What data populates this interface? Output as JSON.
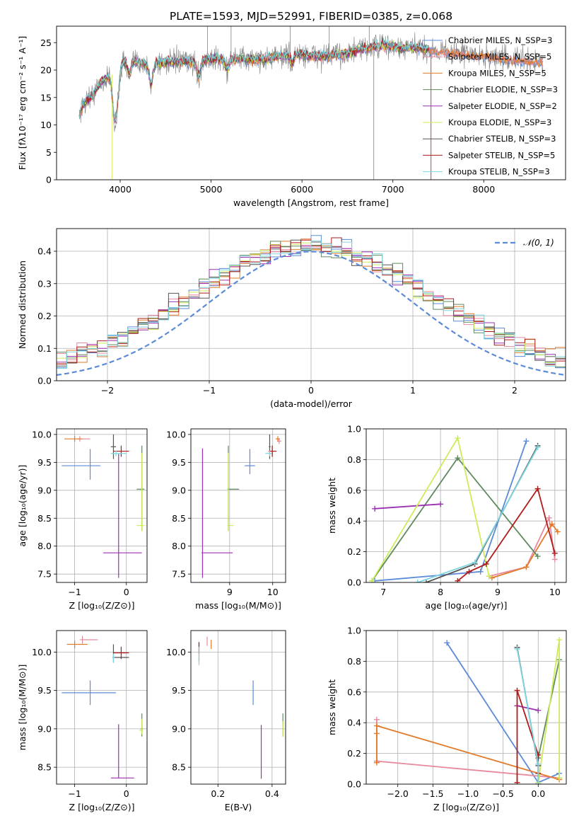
{
  "figure_title": "PLATE=1593, MJD=52991, FIBERID=0385, z=0.068",
  "colors": {
    "chab_miles": "#5b8bd8",
    "salp_miles": "#e68a9e",
    "kroupa_miles": "#e07b2a",
    "chab_elodie": "#5f8a5f",
    "salp_elodie": "#9b30b0",
    "kroupa_elodie": "#ccec5a",
    "chab_stelib": "#555555",
    "salp_stelib": "#b01c1c",
    "kroupa_stelib": "#7dd6e0",
    "data": "#808080",
    "normal": "#5b8bd8"
  },
  "chart_data": [
    {
      "id": "spectrum",
      "type": "line",
      "title": "",
      "xlabel": "wavelength [Angstrom, rest frame]",
      "ylabel": "Flux [fλ10⁻¹⁷ erg cm⁻² s⁻¹ A⁻¹]",
      "xlim": [
        3300,
        8900
      ],
      "ylim": [
        0,
        28
      ],
      "xticks": [
        4000,
        5000,
        6000,
        7000,
        8000
      ],
      "yticks": [
        0,
        5,
        10,
        15,
        20,
        25
      ],
      "grid": false,
      "legend_position": "right",
      "legend": [
        {
          "label": "Chabrier MILES, N_SSP=3",
          "color_key": "chab_miles"
        },
        {
          "label": "Salpeter MILES, N_SSP=5",
          "color_key": "salp_miles"
        },
        {
          "label": "Kroupa MILES, N_SSP=5",
          "color_key": "kroupa_miles"
        },
        {
          "label": "Chabrier ELODIE, N_SSP=3",
          "color_key": "chab_elodie"
        },
        {
          "label": "Salpeter ELODIE, N_SSP=2",
          "color_key": "salp_elodie"
        },
        {
          "label": "Kroupa ELODIE, N_SSP=3",
          "color_key": "kroupa_elodie"
        },
        {
          "label": "Chabrier STELIB, N_SSP=3",
          "color_key": "chab_stelib"
        },
        {
          "label": "Salpeter STELIB, N_SSP=5",
          "color_key": "salp_stelib"
        },
        {
          "label": "Kroupa STELIB, N_SSP=3",
          "color_key": "kroupa_stelib"
        }
      ],
      "continuum": {
        "x": [
          3550,
          3600,
          3700,
          3800,
          3900,
          4000,
          4100,
          4300,
          4500,
          4800,
          5000,
          5300,
          5600,
          5900,
          6200,
          6500,
          6700,
          6900,
          7100,
          7300,
          7500,
          7800,
          8000,
          8300,
          8600
        ],
        "y": [
          12,
          14,
          15.5,
          18,
          19,
          21,
          22,
          21,
          21.5,
          21.5,
          22,
          22,
          22,
          23,
          22.5,
          23,
          24,
          24.5,
          24,
          24,
          23.5,
          23,
          22.5,
          22,
          21.5
        ]
      }
    },
    {
      "id": "residuals",
      "type": "step",
      "title": "",
      "xlabel": "(data-model)/error",
      "ylabel": "Normed distribution",
      "xlim": [
        -2.5,
        2.5
      ],
      "ylim": [
        0,
        0.47
      ],
      "xticks": [
        -2,
        -1,
        0,
        1,
        2
      ],
      "yticks": [
        0.0,
        0.1,
        0.2,
        0.3,
        0.4
      ],
      "grid": true,
      "legend_position": "top-right",
      "legend": [
        {
          "label": "𝒩(0, 1)",
          "color_key": "normal"
        }
      ],
      "bin_width": 0.1,
      "normal_curve": {
        "mean": 0,
        "sigma": 1
      }
    },
    {
      "id": "age_vs_Z",
      "type": "errorbar",
      "xlabel": "Z [log₁₀(Z/Z⊙)]",
      "ylabel": "age  [log₁₀(age/yr)]",
      "xlim": [
        -1.35,
        0.4
      ],
      "ylim": [
        7.35,
        10.1
      ],
      "xticks": [
        -1,
        0
      ],
      "yticks": [
        7.5,
        8.0,
        8.5,
        9.0,
        9.5,
        10.0
      ],
      "grid": true,
      "points": [
        {
          "k": "chab_miles",
          "x": -0.7,
          "xe": [
            0.55,
            0.2
          ],
          "y": 9.44,
          "ye": [
            0.25,
            0.3
          ]
        },
        {
          "k": "salp_miles",
          "x": -0.9,
          "xe": [
            0.05,
            0.2
          ],
          "y": 9.92,
          "ye": [
            0.05,
            0.05
          ]
        },
        {
          "k": "kroupa_miles",
          "x": -1.0,
          "xe": [
            0.2,
            0.15
          ],
          "y": 9.92,
          "ye": [
            0.05,
            0.05
          ]
        },
        {
          "k": "chab_elodie",
          "x": 0.3,
          "xe": [
            0.1,
            0.05
          ],
          "y": 9.02,
          "ye": [
            0.75,
            0.78
          ]
        },
        {
          "k": "salp_elodie",
          "x": -0.15,
          "xe": [
            0.3,
            0.45
          ],
          "y": 7.88,
          "ye": [
            0.45,
            1.77
          ]
        },
        {
          "k": "kroupa_elodie",
          "x": 0.3,
          "xe": [
            0.1,
            0.05
          ],
          "y": 8.37,
          "ye": [
            0.1,
            1.3
          ]
        },
        {
          "k": "chab_stelib",
          "x": -0.25,
          "xe": [
            0.05,
            0.05
          ],
          "y": 9.78,
          "ye": [
            0.22,
            0.22
          ]
        },
        {
          "k": "salp_stelib",
          "x": -0.1,
          "xe": [
            0.15,
            0.15
          ],
          "y": 9.7,
          "ye": [
            0.1,
            0.1
          ]
        },
        {
          "k": "kroupa_stelib",
          "x": -0.2,
          "xe": [
            0.1,
            0.2
          ],
          "y": 9.66,
          "ye": [
            0.05,
            0.05
          ]
        }
      ]
    },
    {
      "id": "age_vs_mass",
      "type": "errorbar",
      "xlabel": "mass [log₁₀(M/M⊙)]",
      "ylabel": "",
      "xlim": [
        8.1,
        10.3
      ],
      "ylim": [
        7.35,
        10.1
      ],
      "xticks": [
        9,
        10
      ],
      "yticks": [
        7.5,
        8.0,
        8.5,
        9.0,
        9.5,
        10.0
      ],
      "grid": true,
      "points": [
        {
          "k": "chab_miles",
          "x": 9.47,
          "xe": [
            0.12,
            0.12
          ],
          "y": 9.44,
          "ye": [
            0.15,
            0.3
          ]
        },
        {
          "k": "salp_miles",
          "x": 10.15,
          "xe": [
            0.05,
            0.05
          ],
          "y": 9.88,
          "ye": [
            0.05,
            0.05
          ]
        },
        {
          "k": "kroupa_miles",
          "x": 10.12,
          "xe": [
            0.05,
            0.05
          ],
          "y": 9.92,
          "ye": [
            0.05,
            0.05
          ]
        },
        {
          "k": "chab_elodie",
          "x": 8.97,
          "xe": [
            0.02,
            0.25
          ],
          "y": 9.02,
          "ye": [
            0.75,
            0.78
          ]
        },
        {
          "k": "salp_elodie",
          "x": 8.37,
          "xe": [
            0.02,
            0.7
          ],
          "y": 7.88,
          "ye": [
            0.45,
            1.87
          ]
        },
        {
          "k": "kroupa_elodie",
          "x": 8.97,
          "xe": [
            0.02,
            0.12
          ],
          "y": 8.37,
          "ye": [
            0.1,
            1.3
          ]
        },
        {
          "k": "chab_stelib",
          "x": 9.93,
          "xe": [
            0.02,
            0.02
          ],
          "y": 9.78,
          "ye": [
            0.22,
            0.22
          ]
        },
        {
          "k": "salp_stelib",
          "x": 9.99,
          "xe": [
            0.08,
            0.1
          ],
          "y": 9.7,
          "ye": [
            0.1,
            0.1
          ]
        },
        {
          "k": "kroupa_stelib",
          "x": 9.93,
          "xe": [
            0.1,
            0.05
          ],
          "y": 9.66,
          "ye": [
            0.05,
            0.05
          ]
        }
      ]
    },
    {
      "id": "mw_vs_age",
      "type": "line",
      "xlabel": "age  [log₁₀(age/yr)]",
      "ylabel": "mass weight",
      "xlim": [
        6.7,
        10.2
      ],
      "ylim": [
        0,
        1
      ],
      "xticks": [
        7,
        8,
        9,
        10
      ],
      "yticks": [
        0.0,
        0.2,
        0.4,
        0.6,
        0.8,
        1.0
      ],
      "grid": true,
      "series": [
        {
          "k": "chab_miles",
          "x": [
            6.85,
            8.7,
            9.5
          ],
          "y": [
            0.01,
            0.07,
            0.92
          ]
        },
        {
          "k": "salp_miles",
          "x": [
            8.85,
            9.5,
            9.9,
            10.0
          ],
          "y": [
            0.04,
            0.1,
            0.42,
            0.15
          ]
        },
        {
          "k": "kroupa_miles",
          "x": [
            8.9,
            9.5,
            9.95,
            10.05
          ],
          "y": [
            0.03,
            0.1,
            0.38,
            0.33
          ]
        },
        {
          "k": "chab_elodie",
          "x": [
            6.8,
            8.3,
            9.7
          ],
          "y": [
            0.01,
            0.81,
            0.17
          ]
        },
        {
          "k": "salp_elodie",
          "x": [
            6.85,
            8.0
          ],
          "y": [
            0.48,
            0.51
          ]
        },
        {
          "k": "kroupa_elodie",
          "x": [
            6.8,
            8.3,
            8.85
          ],
          "y": [
            0.01,
            0.94,
            0.04
          ]
        },
        {
          "k": "chab_stelib",
          "x": [
            7.75,
            8.6,
            9.7
          ],
          "y": [
            0.0,
            0.12,
            0.89
          ]
        },
        {
          "k": "salp_stelib",
          "x": [
            8.3,
            8.5,
            8.8,
            9.7,
            10.0
          ],
          "y": [
            0.01,
            0.07,
            0.12,
            0.61,
            0.19
          ]
        },
        {
          "k": "kroupa_stelib",
          "x": [
            7.6,
            8.6,
            9.7
          ],
          "y": [
            0.0,
            0.13,
            0.88
          ]
        }
      ]
    },
    {
      "id": "mass_vs_Z",
      "type": "errorbar",
      "xlabel": "Z [log₁₀(Z/Z⊙)]",
      "ylabel": "mass [log₁₀(M/M⊙)]",
      "xlim": [
        -1.35,
        0.4
      ],
      "ylim": [
        8.28,
        10.28
      ],
      "xticks": [
        -1,
        0
      ],
      "yticks": [
        8.5,
        9.0,
        9.5,
        10.0
      ],
      "grid": true,
      "points": [
        {
          "k": "chab_miles",
          "x": -0.7,
          "xe": [
            0.55,
            0.5
          ],
          "y": 9.47,
          "ye": [
            0.16,
            0.16
          ]
        },
        {
          "k": "salp_miles",
          "x": -0.85,
          "xe": [
            0.05,
            0.3
          ],
          "y": 10.16,
          "ye": [
            0.05,
            0.05
          ]
        },
        {
          "k": "kroupa_miles",
          "x": -1.0,
          "xe": [
            0.15,
            0.25
          ],
          "y": 10.1,
          "ye": [
            0.05,
            0.05
          ]
        },
        {
          "k": "chab_elodie",
          "x": 0.3,
          "xe": [
            0.02,
            0.02
          ],
          "y": 9.0,
          "ye": [
            0.1,
            0.2
          ]
        },
        {
          "k": "salp_elodie",
          "x": -0.15,
          "xe": [
            0.15,
            0.3
          ],
          "y": 8.36,
          "ye": [
            0.0,
            0.7
          ]
        },
        {
          "k": "kroupa_elodie",
          "x": 0.3,
          "xe": [
            0.05,
            0.02
          ],
          "y": 8.98,
          "ye": [
            0.05,
            0.15
          ]
        },
        {
          "k": "chab_stelib",
          "x": -0.25,
          "xe": [
            0.02,
            0.3
          ],
          "y": 9.93,
          "ye": [
            0.07,
            0.17
          ]
        },
        {
          "k": "salp_stelib",
          "x": -0.1,
          "xe": [
            0.15,
            0.15
          ],
          "y": 9.99,
          "ye": [
            0.08,
            0.08
          ]
        },
        {
          "k": "kroupa_stelib",
          "x": -0.25,
          "xe": [
            0.02,
            0.02
          ],
          "y": 9.93,
          "ye": [
            0.07,
            0.05
          ]
        }
      ]
    },
    {
      "id": "mass_vs_ebv",
      "type": "errorbar",
      "xlabel": "E(B-V)",
      "ylabel": "",
      "xlim": [
        0.1,
        0.45
      ],
      "ylim": [
        8.28,
        10.28
      ],
      "xticks": [
        0.2,
        0.4
      ],
      "yticks": [
        8.5,
        9.0,
        9.5,
        10.0
      ],
      "grid": true,
      "points": [
        {
          "k": "chab_miles",
          "x": 0.33,
          "xe": [
            0,
            0
          ],
          "y": 9.47,
          "ye": [
            0.16,
            0.16
          ]
        },
        {
          "k": "salp_miles",
          "x": 0.16,
          "xe": [
            0,
            0
          ],
          "y": 10.14,
          "ye": [
            0.06,
            0.06
          ]
        },
        {
          "k": "kroupa_miles",
          "x": 0.175,
          "xe": [
            0,
            0
          ],
          "y": 10.1,
          "ye": [
            0.06,
            0.06
          ]
        },
        {
          "k": "chab_elodie",
          "x": 0.44,
          "xe": [
            0,
            0
          ],
          "y": 9.05,
          "ye": [
            0.15,
            0.15
          ]
        },
        {
          "k": "salp_elodie",
          "x": 0.36,
          "xe": [
            0,
            0
          ],
          "y": 8.7,
          "ye": [
            0.35,
            0.35
          ]
        },
        {
          "k": "kroupa_elodie",
          "x": 0.44,
          "xe": [
            0,
            0
          ],
          "y": 9.0,
          "ye": [
            0.1,
            0.1
          ]
        },
        {
          "k": "chab_stelib",
          "x": 0.13,
          "xe": [
            0,
            0
          ],
          "y": 10.0,
          "ye": [
            0.12,
            0.12
          ]
        },
        {
          "k": "salp_stelib",
          "x": 0.13,
          "xe": [
            0,
            0
          ],
          "y": 10.05,
          "ye": [
            0.08,
            0.08
          ]
        },
        {
          "k": "kroupa_stelib",
          "x": 0.13,
          "xe": [
            0,
            0
          ],
          "y": 9.95,
          "ye": [
            0.12,
            0.12
          ]
        }
      ]
    },
    {
      "id": "mw_vs_Z",
      "type": "line",
      "xlabel": "Z [log₁₀(Z/Z⊙)]",
      "ylabel": "mass weight",
      "xlim": [
        -2.45,
        0.4
      ],
      "ylim": [
        0,
        1
      ],
      "xticks": [
        -2.0,
        -1.5,
        -1.0,
        -0.5,
        0.0
      ],
      "yticks": [
        0.0,
        0.2,
        0.4,
        0.6,
        0.8,
        1.0
      ],
      "grid": true,
      "series": [
        {
          "k": "chab_miles",
          "x": [
            -1.3,
            0.0,
            0.3
          ],
          "y": [
            0.92,
            0.01,
            0.07
          ]
        },
        {
          "k": "salp_miles",
          "x": [
            -2.3,
            -2.3,
            0.3
          ],
          "y": [
            0.42,
            0.15,
            0.04
          ]
        },
        {
          "k": "kroupa_miles",
          "x": [
            -2.3,
            -2.3,
            -2.3,
            0.3
          ],
          "y": [
            0.14,
            0.33,
            0.38,
            0.03
          ]
        },
        {
          "k": "chab_elodie",
          "x": [
            0.0,
            0.3
          ],
          "y": [
            0.17,
            0.81
          ]
        },
        {
          "k": "salp_elodie",
          "x": [
            -0.3,
            0.0
          ],
          "y": [
            0.51,
            0.48
          ]
        },
        {
          "k": "kroupa_elodie",
          "x": [
            0.0,
            0.3,
            0.3
          ],
          "y": [
            0.01,
            0.94,
            0.04
          ]
        },
        {
          "k": "chab_stelib",
          "x": [
            -0.3,
            0.0,
            0.0
          ],
          "y": [
            0.89,
            0.12,
            0.0
          ]
        },
        {
          "k": "salp_stelib",
          "x": [
            -0.3,
            -0.3,
            0.0,
            0.0
          ],
          "y": [
            0.01,
            0.61,
            0.19,
            0.07
          ]
        },
        {
          "k": "kroupa_stelib",
          "x": [
            -0.3,
            0.0,
            0.0
          ],
          "y": [
            0.88,
            0.13,
            0.0
          ]
        }
      ]
    }
  ]
}
